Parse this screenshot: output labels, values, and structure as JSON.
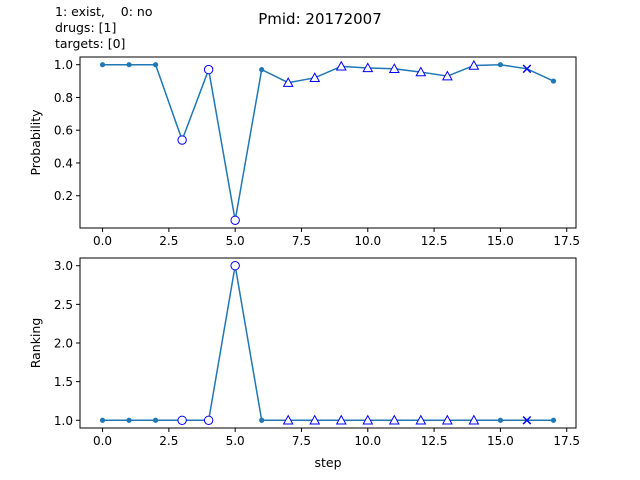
{
  "title": "Pmid: 20172007",
  "legend_text": [
    "1: exist,    0: no",
    "drugs: [1]",
    "targets: [0]"
  ],
  "colors": {
    "line": "#1f77b4",
    "marker_edge": "#0000ff",
    "marker_face": "#ffffff"
  },
  "chart_data": [
    {
      "type": "line",
      "ylabel": "Probability",
      "xlabel": "",
      "xlim": [
        -0.85,
        17.85
      ],
      "ylim": [
        0.003,
        1.047
      ],
      "xticks": [
        0.0,
        2.5,
        5.0,
        7.5,
        10.0,
        12.5,
        15.0,
        17.5
      ],
      "xtick_labels": [
        "0.0",
        "2.5",
        "5.0",
        "7.5",
        "10.0",
        "12.5",
        "15.0",
        "17.5"
      ],
      "yticks": [
        0.2,
        0.4,
        0.6,
        0.8,
        1.0
      ],
      "ytick_labels": [
        "0.2",
        "0.4",
        "0.6",
        "0.8",
        "1.0"
      ],
      "x": [
        0,
        1,
        2,
        3,
        4,
        5,
        6,
        7,
        8,
        9,
        10,
        11,
        12,
        13,
        14,
        15,
        16,
        17
      ],
      "y": [
        1.0,
        1.0,
        1.0,
        0.54,
        0.97,
        0.05,
        0.97,
        0.89,
        0.92,
        0.99,
        0.98,
        0.975,
        0.955,
        0.93,
        0.995,
        1.0,
        0.975,
        0.9
      ],
      "markers": [
        "dot",
        "dot",
        "dot",
        "circle",
        "circle",
        "circle",
        "dot",
        "triangle",
        "triangle",
        "triangle",
        "triangle",
        "triangle",
        "triangle",
        "triangle",
        "triangle",
        "dot",
        "x",
        "dot"
      ]
    },
    {
      "type": "line",
      "ylabel": "Ranking",
      "xlabel": "step",
      "xlim": [
        -0.85,
        17.85
      ],
      "ylim": [
        0.9,
        3.1
      ],
      "xticks": [
        0.0,
        2.5,
        5.0,
        7.5,
        10.0,
        12.5,
        15.0,
        17.5
      ],
      "xtick_labels": [
        "0.0",
        "2.5",
        "5.0",
        "7.5",
        "10.0",
        "12.5",
        "15.0",
        "17.5"
      ],
      "yticks": [
        1.0,
        1.5,
        2.0,
        2.5,
        3.0
      ],
      "ytick_labels": [
        "1.0",
        "1.5",
        "2.0",
        "2.5",
        "3.0"
      ],
      "x": [
        0,
        1,
        2,
        3,
        4,
        5,
        6,
        7,
        8,
        9,
        10,
        11,
        12,
        13,
        14,
        15,
        16,
        17
      ],
      "y": [
        1,
        1,
        1,
        1,
        1,
        3,
        1,
        1,
        1,
        1,
        1,
        1,
        1,
        1,
        1,
        1,
        1,
        1
      ],
      "markers": [
        "dot",
        "dot",
        "dot",
        "circle",
        "circle",
        "circle",
        "dot",
        "triangle",
        "triangle",
        "triangle",
        "triangle",
        "triangle",
        "triangle",
        "triangle",
        "triangle",
        "dot",
        "x",
        "dot"
      ]
    }
  ]
}
